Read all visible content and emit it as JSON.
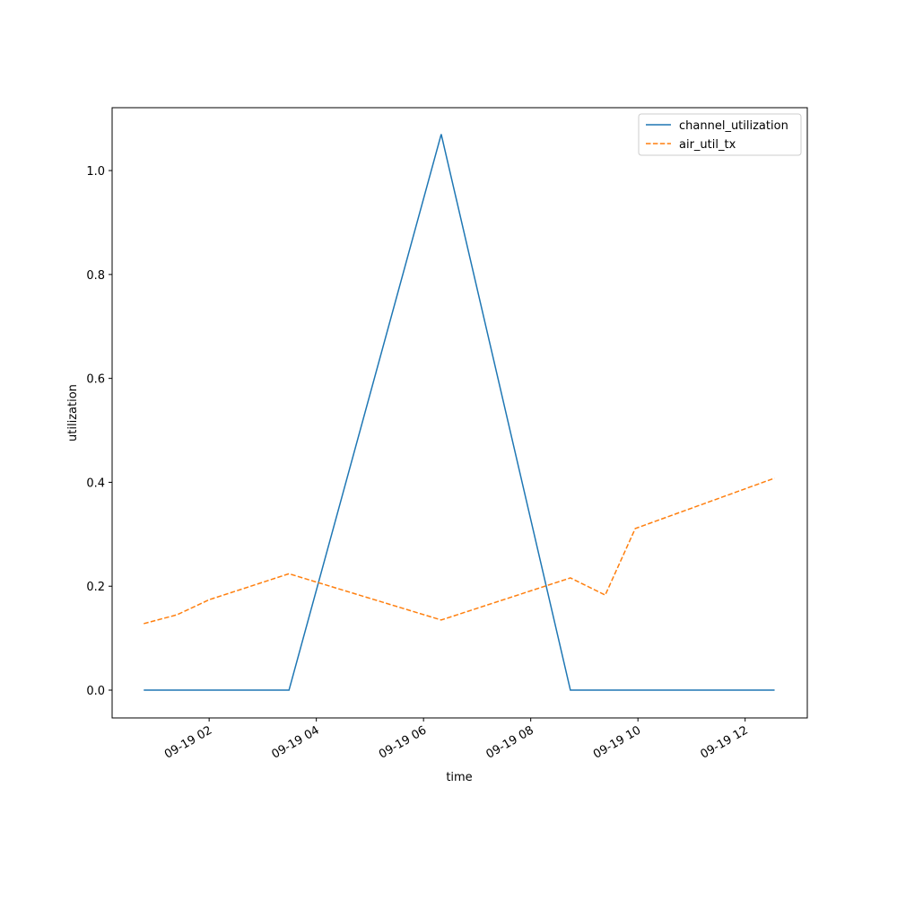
{
  "chart_data": {
    "type": "line",
    "x_label": "time",
    "y_label": "utilization",
    "x": [
      0.78,
      1.4,
      2.0,
      3.49,
      6.33,
      8.74,
      9.39,
      9.95,
      12.55
    ],
    "series": [
      {
        "name": "channel_utilization",
        "color": "#1f77b4",
        "dash": "solid",
        "values": [
          0,
          0,
          0,
          0,
          1.07,
          0,
          0,
          0,
          0
        ]
      },
      {
        "name": "air_util_tx",
        "color": "#ff7f0e",
        "dash": "dashed",
        "values": [
          0.128,
          0.145,
          0.174,
          0.224,
          0.135,
          0.216,
          0.183,
          0.311,
          0.408
        ]
      }
    ],
    "xlim": [
      0.19,
      13.16
    ],
    "xticks": [
      {
        "value": 2,
        "label": "09-19 02"
      },
      {
        "value": 4,
        "label": "09-19 04"
      },
      {
        "value": 6,
        "label": "09-19 06"
      },
      {
        "value": 8,
        "label": "09-19 08"
      },
      {
        "value": 10,
        "label": "09-19 10"
      },
      {
        "value": 12,
        "label": "09-19 12"
      }
    ],
    "ylim": [
      -0.0535,
      1.121
    ],
    "yticks": [
      {
        "value": 0,
        "label": "0.0"
      },
      0.2,
      0.4,
      0.6,
      0.8,
      {
        "value": 1,
        "label": "1.0"
      }
    ],
    "grid": false,
    "legend": "upper right"
  }
}
